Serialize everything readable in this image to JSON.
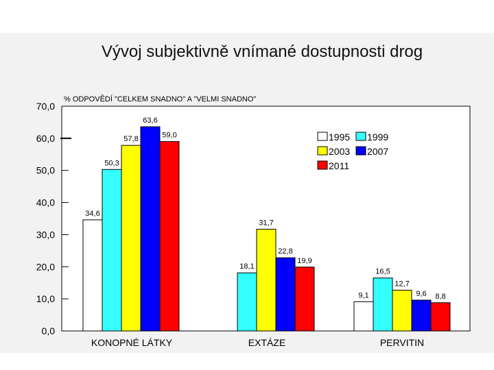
{
  "title": "Vývoj subjektivně vnímané dostupnosti drog",
  "chart_data": {
    "type": "bar",
    "title": "Vývoj subjektivně vnímané dostupnosti drog",
    "ylabel": "% ODPOVĚDÍ \"CELKEM SNADNO\" A \"VELMI SNADNO\"",
    "xlabel": "",
    "ylim": [
      0,
      70
    ],
    "yticks": [
      "0,0",
      "10,0",
      "20,0",
      "30,0",
      "40,0",
      "50,0",
      "60,0",
      "70,0"
    ],
    "categories": [
      "KONOPNÉ LÁTKY",
      "EXTÁZE",
      "PERVITIN"
    ],
    "series": [
      {
        "name": "1995",
        "color": "#ffffff",
        "values": [
          34.6,
          null,
          9.1
        ],
        "labels": [
          "34,6",
          null,
          "9,1"
        ]
      },
      {
        "name": "1999",
        "color": "#33ffff",
        "values": [
          50.3,
          18.1,
          16.5
        ],
        "labels": [
          "50,3",
          "18,1",
          "16,5"
        ]
      },
      {
        "name": "2003",
        "color": "#ffff00",
        "values": [
          57.8,
          31.7,
          12.7
        ],
        "labels": [
          "57,8",
          "31,7",
          "12,7"
        ]
      },
      {
        "name": "2007",
        "color": "#0000ff",
        "values": [
          63.6,
          22.8,
          9.6
        ],
        "labels": [
          "63,6",
          "22,8",
          "9,6"
        ]
      },
      {
        "name": "2011",
        "color": "#ff0000",
        "values": [
          59.0,
          19.9,
          8.8
        ],
        "labels": [
          "59,0",
          "19,9",
          "8,8"
        ]
      }
    ],
    "legend_position": "top-right",
    "grid": false
  }
}
